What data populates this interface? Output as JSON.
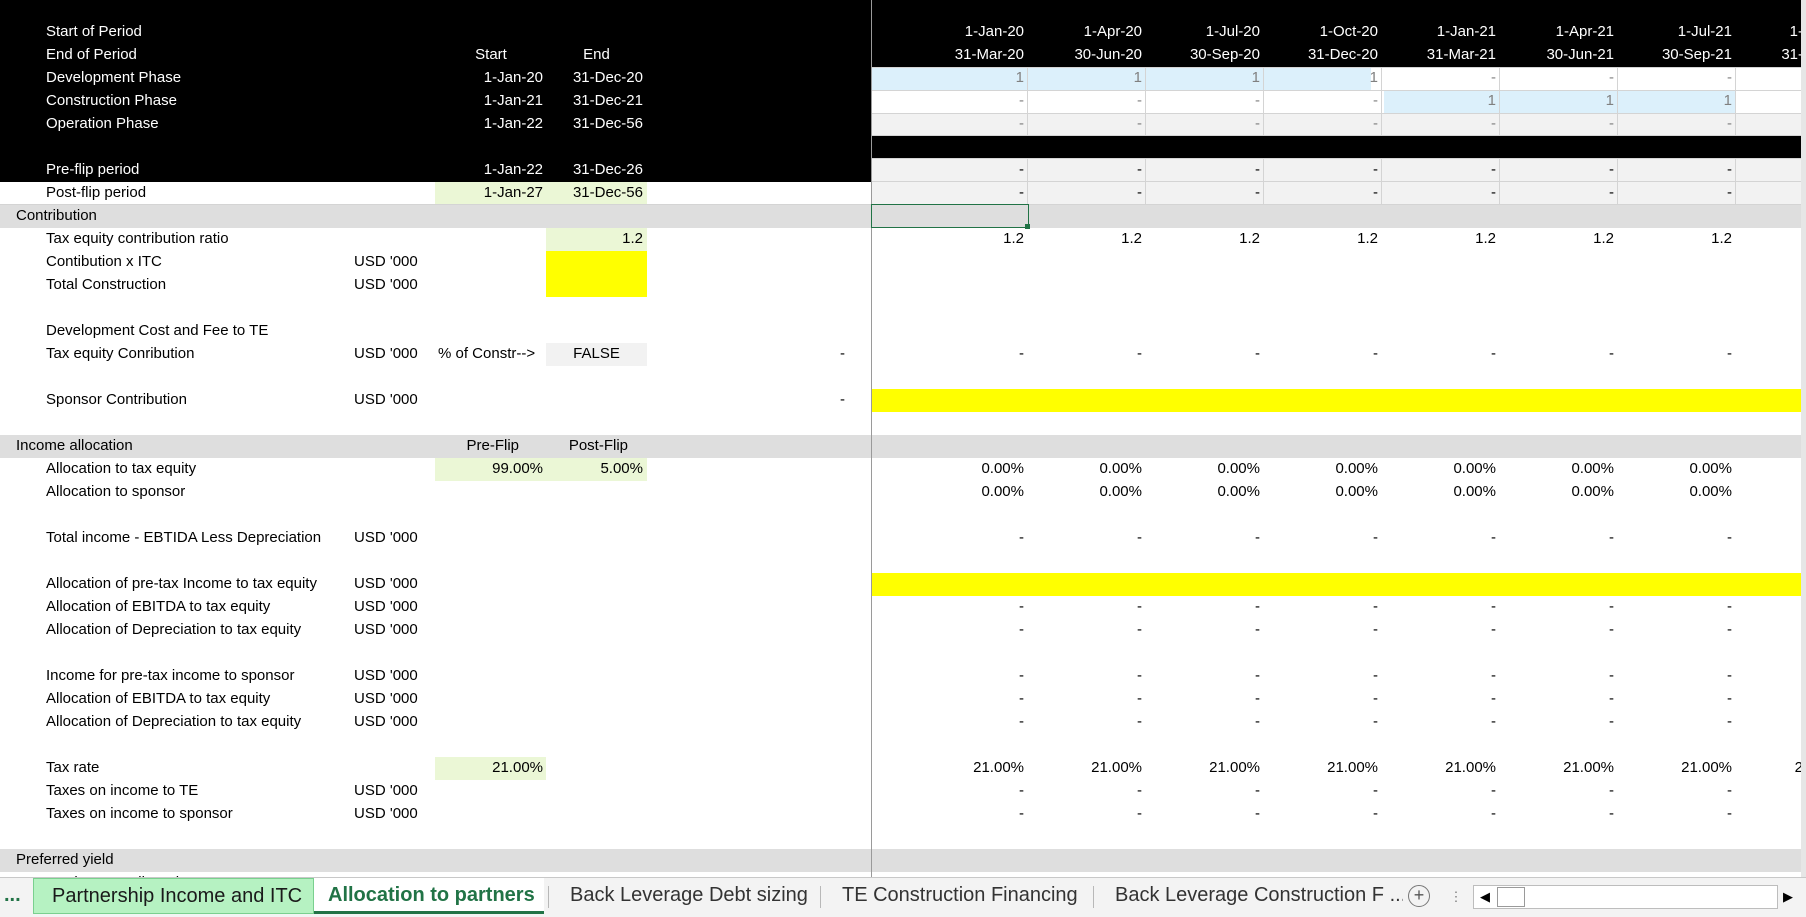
{
  "period_header": {
    "start_label": "Start of Period",
    "end_label": "End of Period",
    "col_start": "Start",
    "col_end": "End",
    "starts": [
      "1-Jan-20",
      "1-Apr-20",
      "1-Jul-20",
      "1-Oct-20",
      "1-Jan-21",
      "1-Apr-21",
      "1-Jul-21",
      "1-"
    ],
    "ends": [
      "31-Mar-20",
      "30-Jun-20",
      "30-Sep-20",
      "31-Dec-20",
      "31-Mar-21",
      "30-Jun-21",
      "30-Sep-21",
      "31-"
    ]
  },
  "phases": [
    {
      "label": "Development Phase",
      "start": "1-Jan-20",
      "end": "31-Dec-20",
      "flags": [
        "1",
        "1",
        "1",
        "1",
        "-",
        "-",
        "-"
      ]
    },
    {
      "label": "Construction Phase",
      "start": "1-Jan-21",
      "end": "31-Dec-21",
      "flags": [
        "-",
        "-",
        "-",
        "-",
        "1",
        "1",
        "1"
      ]
    },
    {
      "label": "Operation Phase",
      "start": "1-Jan-22",
      "end": "31-Dec-56",
      "flags": [
        "-",
        "-",
        "-",
        "-",
        "-",
        "-",
        "-"
      ]
    }
  ],
  "flip": [
    {
      "label": "Pre-flip period",
      "start": "1-Jan-22",
      "end": "31-Dec-26",
      "flags": [
        "-",
        "-",
        "-",
        "-",
        "-",
        "-",
        "-"
      ]
    },
    {
      "label": "Post-flip period",
      "start": "1-Jan-27",
      "end": "31-Dec-56",
      "flags": [
        "-",
        "-",
        "-",
        "-",
        "-",
        "-",
        "-"
      ]
    }
  ],
  "contribution": {
    "section": "Contribution",
    "ratio_label": "Tax equity contribution ratio",
    "ratio_value": "1.2",
    "ratio_periods": [
      "1.2",
      "1.2",
      "1.2",
      "1.2",
      "1.2",
      "1.2",
      "1.2"
    ],
    "itc_label": "Contibution x ITC",
    "total_label": "Total Construction",
    "dev_label": "Development Cost and Fee to TE",
    "te_label": "Tax equity Conribution",
    "pct_label": "% of Constr-->",
    "pct_value": "FALSE",
    "te_total": "-",
    "te_periods": [
      "-",
      "-",
      "-",
      "-",
      "-",
      "-",
      "-"
    ],
    "sponsor_label": "Sponsor Contribution",
    "sponsor_total": "-"
  },
  "income": {
    "section": "Income allocation",
    "pre_flip": "Pre-Flip",
    "post_flip": "Post-Flip",
    "alloc_te_label": "Allocation to tax equity",
    "alloc_te_pre": "99.00%",
    "alloc_te_post": "5.00%",
    "alloc_te_periods": [
      "0.00%",
      "0.00%",
      "0.00%",
      "0.00%",
      "0.00%",
      "0.00%",
      "0.00%"
    ],
    "alloc_sp_label": "Allocation to sponsor",
    "alloc_sp_periods": [
      "0.00%",
      "0.00%",
      "0.00%",
      "0.00%",
      "0.00%",
      "0.00%",
      "0.00%"
    ],
    "total_income_label": "Total income - EBTIDA Less Depreciation",
    "pretax_te_label": "Allocation of pre-tax Income to tax equity",
    "ebitda_te_label": "Allocation of EBITDA to tax equity",
    "dep_te_label": "Allocation of Depreciation to tax equity",
    "pretax_sp_label": "Income for pre-tax income to sponsor",
    "ebitda_sp_label": "Allocation of EBITDA to tax equity",
    "dep_sp_label": "Allocation of Depreciation to tax equity",
    "tax_rate_label": "Tax rate",
    "tax_rate": "21.00%",
    "tax_rate_periods": [
      "21.00%",
      "21.00%",
      "21.00%",
      "21.00%",
      "21.00%",
      "21.00%",
      "21.00%",
      "2"
    ],
    "taxes_te_label": "Taxes  on income to TE",
    "taxes_sp_label": "Taxes on income to sponsor",
    "dash_periods": [
      "-",
      "-",
      "-",
      "-",
      "-",
      "-",
      "-"
    ]
  },
  "preferred": {
    "section": "Preferred yield",
    "next_label": "Total TE contributed"
  },
  "unit": "USD '000",
  "tabs": {
    "ellipsis": "...",
    "items": [
      "Partnership Income and ITC",
      "Allocation to partners",
      "Back Leverage Debt sizing",
      "TE Construction Financing",
      "Back Leverage Construction F ..."
    ],
    "plus": "+",
    "more": "⋮",
    "left": "◀",
    "right": "▶"
  },
  "colors": {
    "accent": "#217346",
    "yellow": "#ffff00",
    "input_green": "#ebf7d6",
    "flag_blue": "#dcf0fb"
  }
}
